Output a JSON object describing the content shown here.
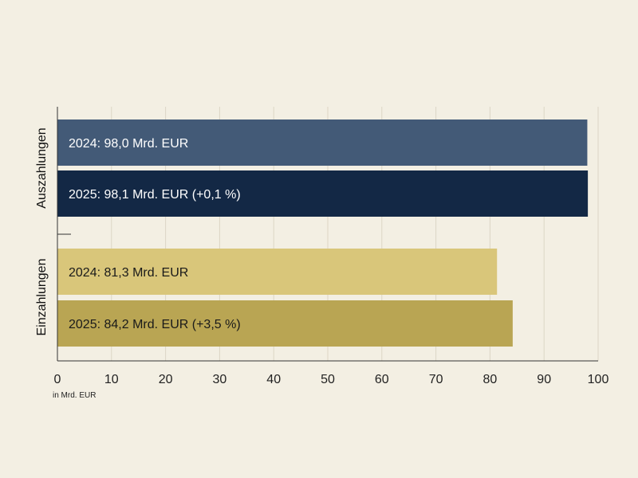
{
  "chart_data": {
    "type": "bar",
    "orientation": "horizontal",
    "xlim": [
      0,
      100
    ],
    "x_ticks": [
      0,
      10,
      20,
      30,
      40,
      50,
      60,
      70,
      80,
      90,
      100
    ],
    "x_tick_labels": [
      "0",
      "10",
      "20",
      "30",
      "40",
      "50",
      "60",
      "70",
      "80",
      "90",
      "100"
    ],
    "unit_note": "in Mrd. EUR",
    "grid": "vertical",
    "groups": [
      {
        "name": "Auszahlungen",
        "bars": [
          {
            "year": "2024",
            "value": 98.0,
            "label": "2024: 98,0 Mrd. EUR",
            "color": "#435a77",
            "text_color": "#ffffff"
          },
          {
            "year": "2025",
            "value": 98.1,
            "label": "2025: 98,1 Mrd. EUR (+0,1 %)",
            "color": "#132845",
            "text_color": "#ffffff"
          }
        ]
      },
      {
        "name": "Einzahlungen",
        "bars": [
          {
            "year": "2024",
            "value": 81.3,
            "label": "2024: 81,3 Mrd. EUR",
            "color": "#d9c67a",
            "text_color": "#1a1a1a"
          },
          {
            "year": "2025",
            "value": 84.2,
            "label": "2025: 84,2 Mrd. EUR (+3,5 %)",
            "color": "#b9a553",
            "text_color": "#1a1a1a"
          }
        ]
      }
    ]
  },
  "colors": {
    "background": "#f3efe3",
    "grid": "#dcd6c6",
    "axis": "#333333"
  }
}
